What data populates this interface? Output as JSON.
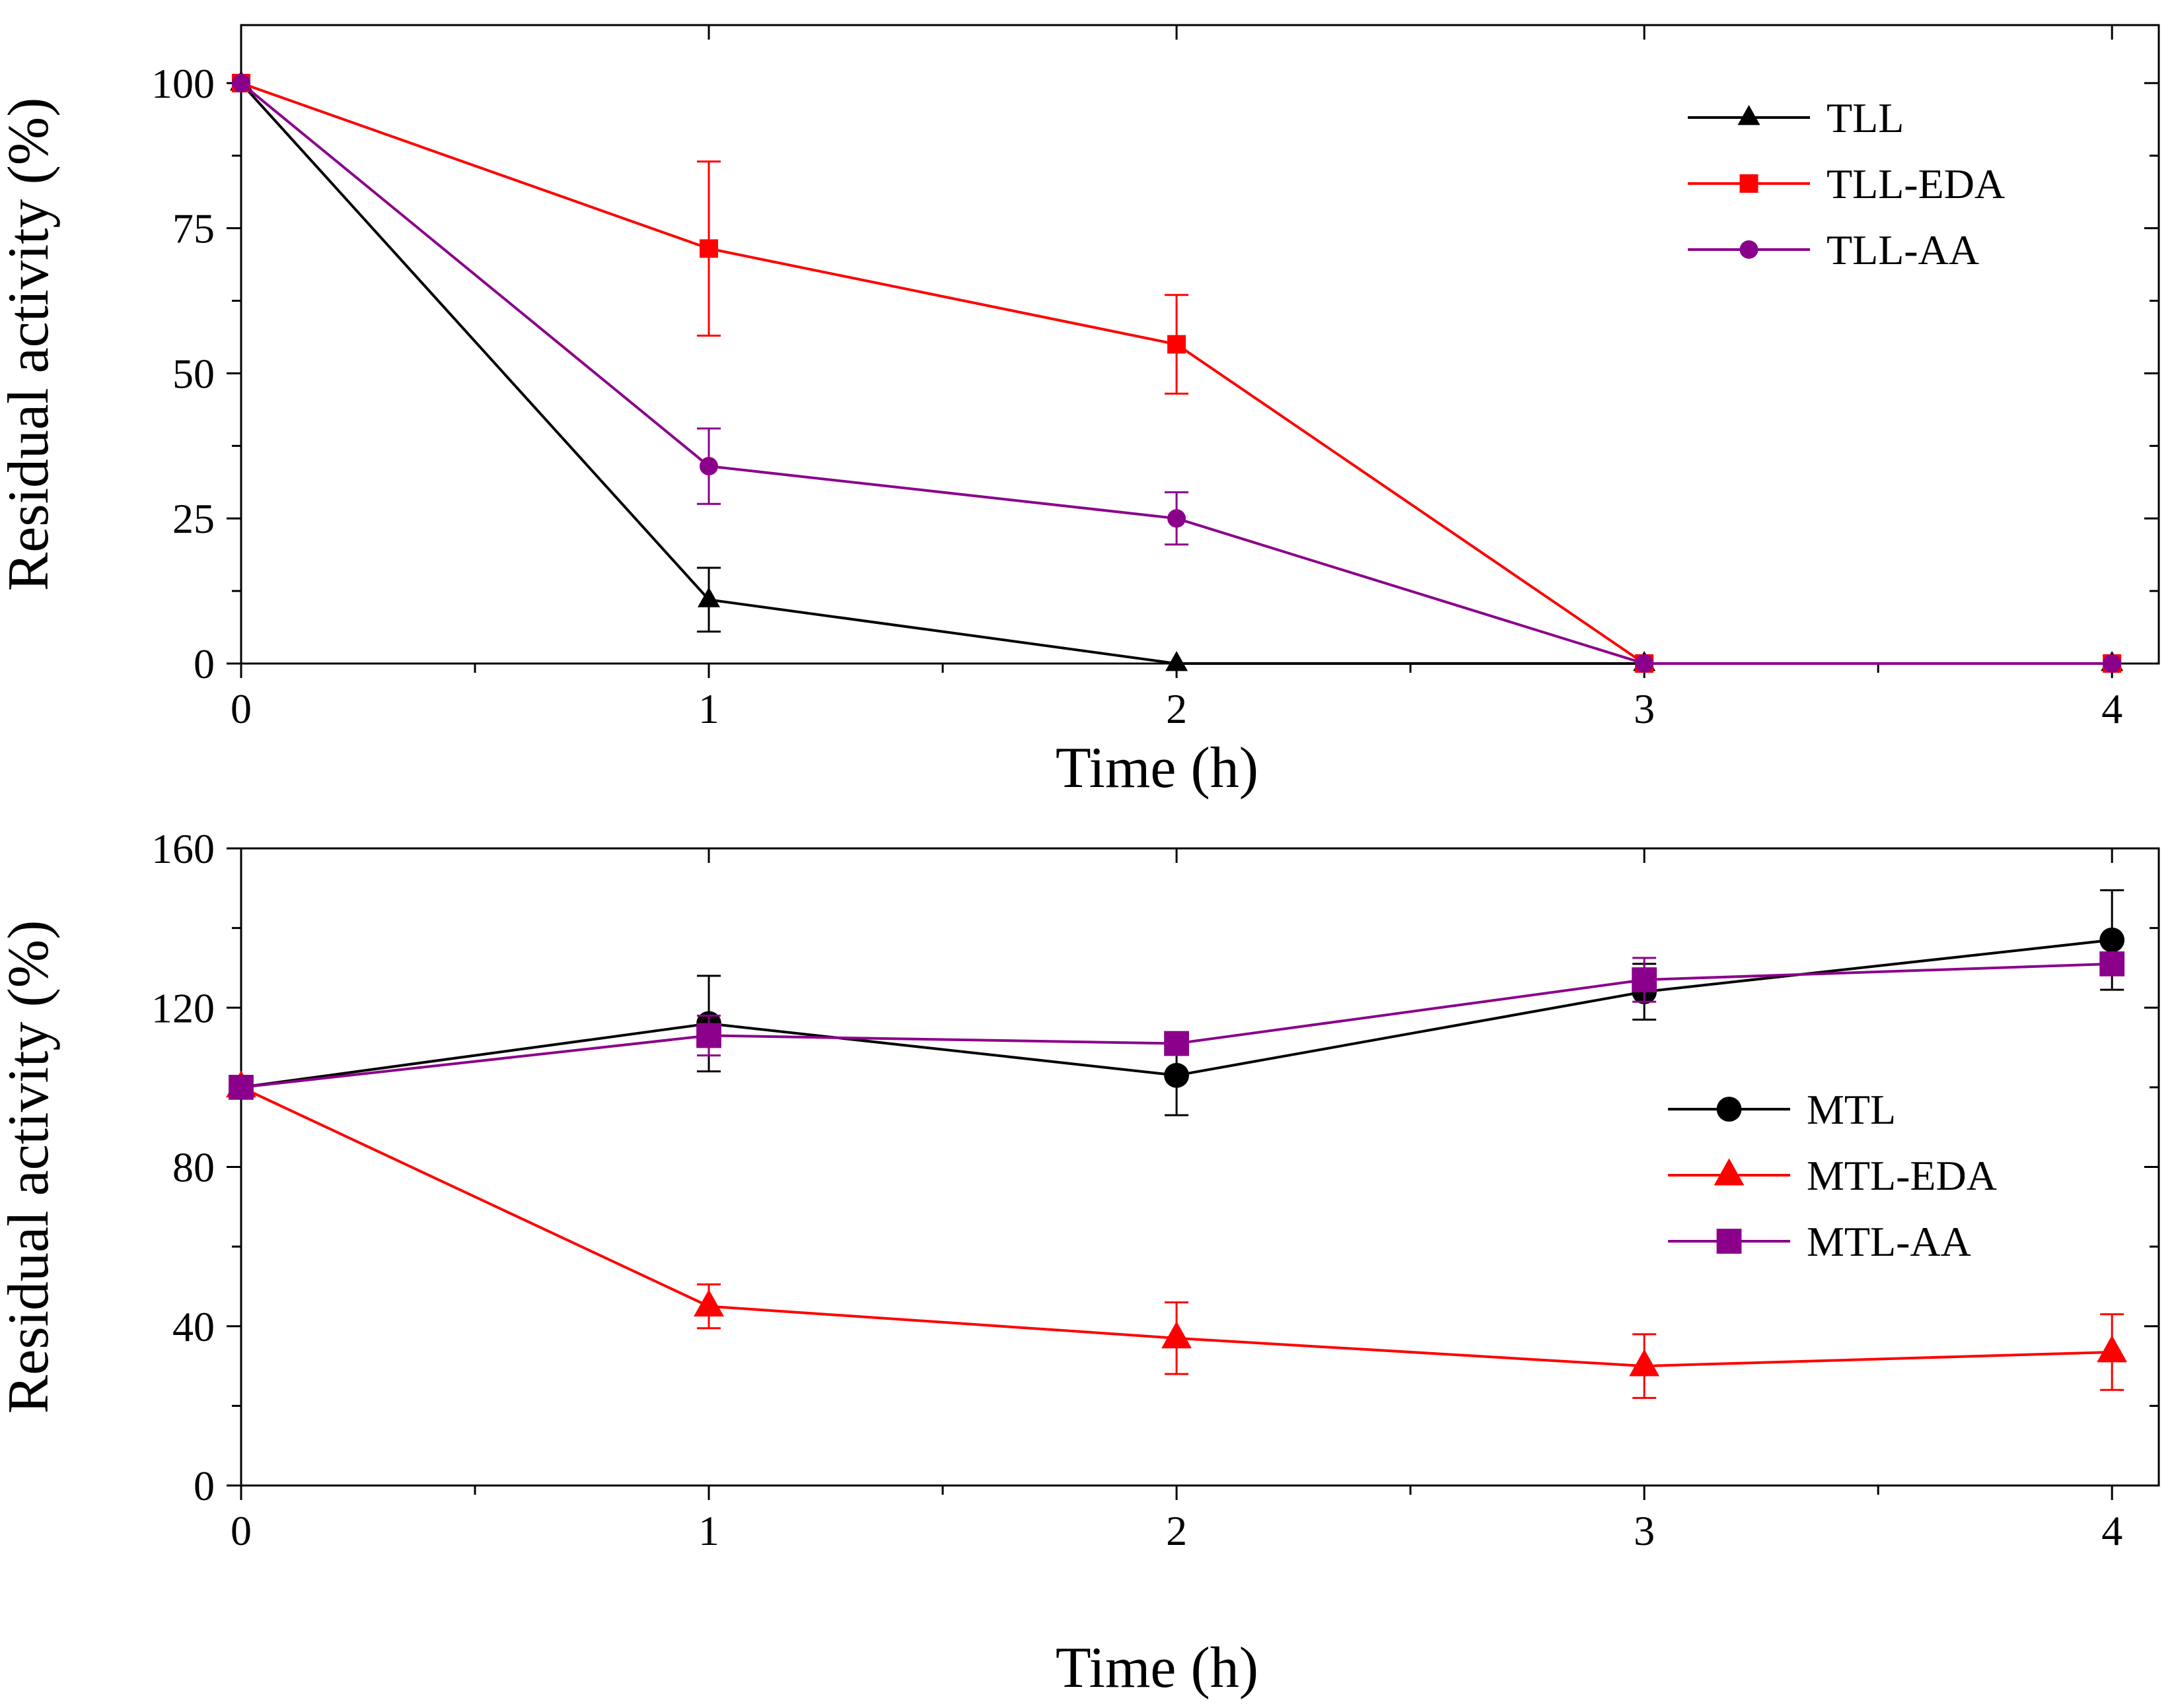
{
  "chart_data": [
    {
      "type": "line",
      "xlabel": "Time (h)",
      "ylabel": "Residual activity (%)",
      "xlim": [
        0,
        4.1
      ],
      "ylim": [
        0,
        110
      ],
      "xticks": [
        0,
        1,
        2,
        3,
        4
      ],
      "yticks": [
        0,
        25,
        50,
        75,
        100
      ],
      "x": [
        0,
        1,
        2,
        3,
        4
      ],
      "legend_position": "top-right",
      "series": [
        {
          "name": "TLL",
          "color": "#000000",
          "marker": "triangle",
          "values": [
            100,
            11,
            0,
            0,
            0
          ],
          "errors": [
            0,
            5.5,
            0,
            0,
            0
          ]
        },
        {
          "name": "TLL-EDA",
          "color": "#ff0000",
          "marker": "square",
          "values": [
            100,
            71.5,
            55,
            0,
            0
          ],
          "errors": [
            0,
            15,
            8.5,
            0,
            0
          ]
        },
        {
          "name": "TLL-AA",
          "color": "#8b008b",
          "marker": "circle",
          "values": [
            100,
            34,
            25,
            0,
            0
          ],
          "errors": [
            0,
            6.5,
            4.5,
            0,
            0
          ]
        }
      ]
    },
    {
      "type": "line",
      "xlabel": "Time (h)",
      "ylabel": "Residual activity (%)",
      "xlim": [
        0,
        4.1
      ],
      "ylim": [
        0,
        160
      ],
      "xticks": [
        0,
        1,
        2,
        3,
        4
      ],
      "yticks": [
        0,
        40,
        80,
        120,
        160
      ],
      "x": [
        0,
        1,
        2,
        3,
        4
      ],
      "legend_position": "right",
      "series": [
        {
          "name": "MTL",
          "color": "#000000",
          "marker": "circle",
          "values": [
            100,
            116,
            103,
            124,
            137
          ],
          "errors": [
            0,
            12,
            10,
            7,
            12.5
          ]
        },
        {
          "name": "MTL-EDA",
          "color": "#ff0000",
          "marker": "triangle",
          "values": [
            100,
            45,
            37,
            30,
            33.5
          ],
          "errors": [
            0,
            5.5,
            9,
            8,
            9.5
          ]
        },
        {
          "name": "MTL-AA",
          "color": "#8b008b",
          "marker": "square",
          "values": [
            100,
            113,
            111,
            127,
            131
          ],
          "errors": [
            0,
            5,
            2.5,
            5.5,
            2
          ]
        }
      ]
    }
  ]
}
